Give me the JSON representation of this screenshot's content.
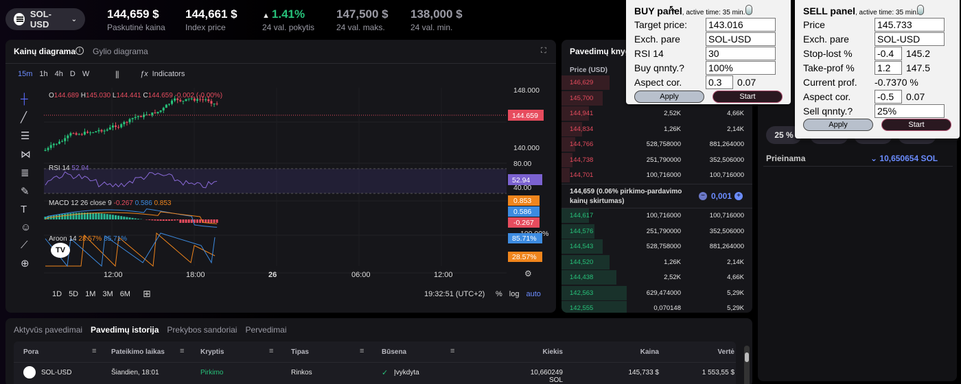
{
  "header": {
    "pair": "SOL-USD",
    "stats": [
      {
        "value": "144,659 $",
        "label": "Paskutinė kaina"
      },
      {
        "value": "144,661 $",
        "label": "Index price"
      },
      {
        "value": "1.41%",
        "label": "24 val. pokytis"
      },
      {
        "value": "147,500 $",
        "label": "24 val. maks."
      },
      {
        "value": "138,000 $",
        "label": "24 val. min."
      }
    ]
  },
  "chart": {
    "tab_active": "Kainų diagrama",
    "tab_other": "Gylio diagrama",
    "intervals": [
      "15m",
      "1h",
      "4h",
      "D",
      "W"
    ],
    "indicators_label": "Indicators",
    "ohlc": {
      "o_label": "O",
      "o": "144.689",
      "h_label": "H",
      "h": "145.030",
      "l_label": "L",
      "l": "144.441",
      "c_label": "C",
      "c": "144.659",
      "chg": "-0.002 (-0.00%)"
    },
    "price_axis": [
      "148.000",
      "144.659",
      "140.000"
    ],
    "rsi": {
      "label": "RSI 14",
      "value": "52.94",
      "axis": [
        "80.00",
        "52.94",
        "40.00"
      ]
    },
    "macd": {
      "label": "MACD 12 26 close 9",
      "v1": "-0.267",
      "v2": "0.586",
      "v3": "0.853",
      "tags": [
        "0.853",
        "0.586",
        "-0.267"
      ]
    },
    "aroon": {
      "label": "Aroon 14",
      "up": "28.57%",
      "down": "85.71%",
      "tags": [
        "100.00%",
        "85.71%",
        "28.57%"
      ]
    },
    "time_axis": [
      "12:00",
      "18:00",
      "26",
      "06:00",
      "12:00"
    ],
    "ranges": [
      "1D",
      "5D",
      "1M",
      "3M",
      "6M"
    ],
    "clock": "19:32:51 (UTC+2)",
    "scale_opts": [
      "%",
      "log",
      "auto"
    ]
  },
  "orderbook": {
    "title": "Pavedimų knyg",
    "col_price": "Price (USD)",
    "asks": [
      {
        "p": "146,629",
        "a": "",
        "t": ""
      },
      {
        "p": "145,700",
        "a": "",
        "t": ""
      },
      {
        "p": "144,941",
        "a": "2,52K",
        "t": "4,66K"
      },
      {
        "p": "144,834",
        "a": "1,26K",
        "t": "2,14K"
      },
      {
        "p": "144,766",
        "a": "528,758000",
        "t": "881,264000"
      },
      {
        "p": "144,738",
        "a": "251,790000",
        "t": "352,506000"
      },
      {
        "p": "144,701",
        "a": "100,716000",
        "t": "100,716000"
      }
    ],
    "spread_text": "144,659 (0.06% pirkimo-pardavimo kainų skirtumas)",
    "spread_step": "0,001",
    "bids": [
      {
        "p": "144,617",
        "a": "100,716000",
        "t": "100,716000"
      },
      {
        "p": "144,576",
        "a": "251,790000",
        "t": "352,506000"
      },
      {
        "p": "144,543",
        "a": "528,758000",
        "t": "881,264000"
      },
      {
        "p": "144,520",
        "a": "1,26K",
        "t": "2,14K"
      },
      {
        "p": "144,438",
        "a": "2,52K",
        "t": "4,66K"
      },
      {
        "p": "142,563",
        "a": "629,474000",
        "t": "5,29K"
      },
      {
        "p": "142,555",
        "a": "0,070148",
        "t": "5,29K"
      }
    ]
  },
  "trade": {
    "pct": "25 %",
    "available_label": "Prieinama",
    "available": "10,650654 SOL"
  },
  "buy_panel": {
    "title": "BUY panel",
    "active": ", active time: 35 min.",
    "rows": [
      {
        "label": "Target price:",
        "value": "143.016"
      },
      {
        "label": "Exch. pare",
        "value": "SOL-USD"
      },
      {
        "label": "RSI 14",
        "value": "30"
      },
      {
        "label": "Buy qnnty.?",
        "value": "100%"
      },
      {
        "label": "Aspect cor.",
        "value": "0.3",
        "extra": "0.07"
      }
    ],
    "apply": "Apply",
    "start": "Start"
  },
  "sell_panel": {
    "title": "SELL panel",
    "active": ", active time: 35 min.",
    "rows": [
      {
        "label": "Price",
        "value": "145.733",
        "extra": ""
      },
      {
        "label": "Exch. pare",
        "value": "SOL-USD",
        "extra": ""
      },
      {
        "label": "Stop-lost %",
        "value": "-0.4",
        "extra": "145.2"
      },
      {
        "label": "Take-prof %",
        "value": "1.2",
        "extra": "147.5"
      },
      {
        "label": "Current prof.",
        "value": "",
        "extra": "-0.7370 %"
      },
      {
        "label": "Aspect cor.",
        "value": "-0.5",
        "extra": "0.07"
      },
      {
        "label": "Sell qnnty.?",
        "value": "25%",
        "extra": ""
      }
    ],
    "apply": "Apply",
    "start": "Start"
  },
  "bottom": {
    "tabs": [
      "Aktyvūs pavedimai",
      "Pavedimų istorija",
      "Prekybos sandoriai",
      "Pervedimai"
    ],
    "active_tab": 1,
    "columns": [
      "Pora",
      "Pateikimo laikas",
      "Kryptis",
      "Tipas",
      "Būsena",
      "Kiekis",
      "Kaina",
      "Vertė"
    ],
    "rows": [
      {
        "pair": "SOL-USD",
        "time": "Šiandien, 18:01",
        "dir": "Pirkimo",
        "type": "Rinkos",
        "status": "Įvykdyta",
        "qty": "10,660249 SOL",
        "price": "145,733 $",
        "value": "1 553,55 $"
      }
    ]
  }
}
